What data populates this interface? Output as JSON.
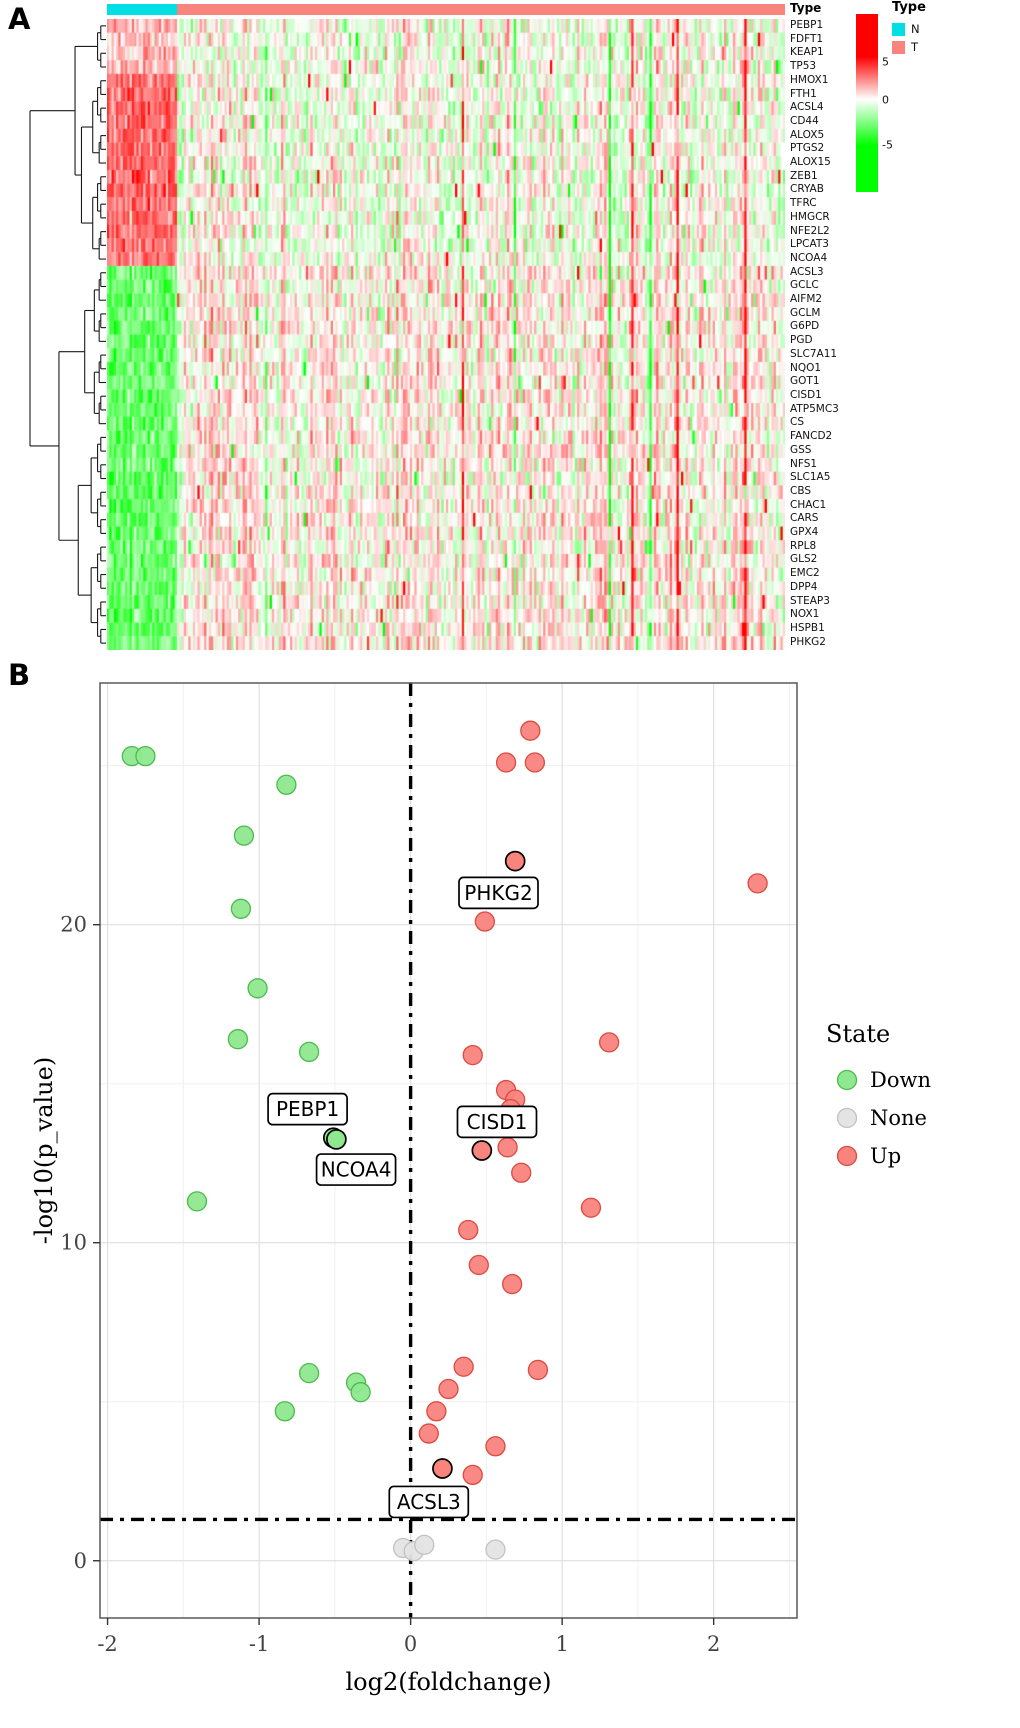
{
  "panels": {
    "a_label": "A",
    "b_label": "B"
  },
  "chart_data": [
    {
      "type": "heatmap",
      "rows": [
        "PEBP1",
        "FDFT1",
        "KEAP1",
        "TP53",
        "HMOX1",
        "FTH1",
        "ACSL4",
        "CD44",
        "ALOX5",
        "PTGS2",
        "ALOX15",
        "ZEB1",
        "CRYAB",
        "TFRC",
        "HMGCR",
        "NFE2L2",
        "LPCAT3",
        "NCOA4",
        "ACSL3",
        "GCLC",
        "AIFM2",
        "GCLM",
        "G6PD",
        "PGD",
        "SLC7A11",
        "NQO1",
        "GOT1",
        "CISD1",
        "ATP5MC3",
        "CS",
        "FANCD2",
        "GSS",
        "NFS1",
        "SLC1A5",
        "CBS",
        "CHAC1",
        "CARS",
        "GPX4",
        "RPL8",
        "GLS2",
        "EMC2",
        "DPP4",
        "STEAP3",
        "NOX1",
        "HSPB1",
        "PHKG2"
      ],
      "annotation_title": "Type",
      "annotation_groups": [
        {
          "label": "N",
          "color": "#00E0E4",
          "fraction": 0.103
        },
        {
          "label": "T",
          "color": "#F9837D",
          "fraction": 0.897
        }
      ],
      "legend_title": "Type",
      "colorbar_ticks": [
        "5",
        "0",
        "-5"
      ],
      "colorbar_colors": {
        "high": "#FF0000",
        "mid": "#FFFFFF",
        "low": "#00FF00"
      },
      "value_range": [
        -10,
        10
      ],
      "n_columns": 300,
      "legend_position": "right"
    },
    {
      "type": "scatter",
      "subtype": "volcano",
      "xlabel": "log2(foldchange)",
      "ylabel": "-log10(p_value)",
      "x_ticks": [
        -2,
        -1,
        0,
        1,
        2
      ],
      "y_ticks": [
        0,
        10,
        20
      ],
      "x_minor_ticks": [
        -1.5,
        -0.5,
        0.5,
        1.5,
        2.5
      ],
      "y_minor_ticks": [
        5,
        15,
        25
      ],
      "xlim": [
        -2.05,
        2.55
      ],
      "ylim": [
        -1.8,
        27.6
      ],
      "vline_x": 0,
      "hline_y": 1.3,
      "grid": true,
      "legend_title": "State",
      "legend_position": "right",
      "series": [
        {
          "name": "Down",
          "color": "#8FE88F",
          "stroke": "#4CBB4C",
          "points": [
            [
              -1.84,
              25.3
            ],
            [
              -1.75,
              25.3
            ],
            [
              -0.82,
              24.4
            ],
            [
              -1.1,
              22.8
            ],
            [
              -1.12,
              20.5
            ],
            [
              -1.01,
              18.0
            ],
            [
              -1.14,
              16.4
            ],
            [
              -0.67,
              16.0
            ],
            [
              -1.41,
              11.3
            ],
            [
              -0.67,
              5.9
            ],
            [
              -0.36,
              5.6
            ],
            [
              -0.33,
              5.3
            ],
            [
              -0.83,
              4.7
            ]
          ]
        },
        {
          "name": "None",
          "color": "#E4E4E4",
          "stroke": "#C2C2C2",
          "points": [
            [
              -0.05,
              0.4
            ],
            [
              0.02,
              0.3
            ],
            [
              0.09,
              0.5
            ],
            [
              0.56,
              0.35
            ]
          ]
        },
        {
          "name": "Up",
          "color": "#F9837D",
          "stroke": "#DC4A40",
          "points": [
            [
              0.79,
              26.1
            ],
            [
              0.63,
              25.1
            ],
            [
              0.82,
              25.1
            ],
            [
              2.29,
              21.3
            ],
            [
              0.49,
              20.1
            ],
            [
              1.31,
              16.3
            ],
            [
              0.41,
              15.9
            ],
            [
              0.63,
              14.8
            ],
            [
              0.69,
              14.5
            ],
            [
              0.66,
              14.2
            ],
            [
              0.64,
              13.0
            ],
            [
              0.73,
              12.2
            ],
            [
              1.19,
              11.1
            ],
            [
              0.38,
              10.4
            ],
            [
              0.45,
              9.3
            ],
            [
              0.67,
              8.7
            ],
            [
              0.35,
              6.1
            ],
            [
              0.84,
              6.0
            ],
            [
              0.25,
              5.4
            ],
            [
              0.17,
              4.7
            ],
            [
              0.12,
              4.0
            ],
            [
              0.56,
              3.6
            ],
            [
              0.41,
              2.7
            ]
          ]
        }
      ],
      "labeled_points": [
        {
          "gene": "PHKG2",
          "x": 0.69,
          "y": 22.0,
          "state": "Up",
          "label_x": 0.58,
          "label_y": 21.0
        },
        {
          "gene": "PEBP1",
          "x": -0.51,
          "y": 13.3,
          "state": "Down",
          "label_x": -0.68,
          "label_y": 14.2
        },
        {
          "gene": "NCOA4",
          "x": -0.49,
          "y": 13.25,
          "state": "Down",
          "label_x": -0.36,
          "label_y": 12.3
        },
        {
          "gene": "CISD1",
          "x": 0.47,
          "y": 12.9,
          "state": "Up",
          "label_x": 0.57,
          "label_y": 13.8
        },
        {
          "gene": "ACSL3",
          "x": 0.21,
          "y": 2.9,
          "state": "Up",
          "label_x": 0.12,
          "label_y": 1.85
        }
      ]
    }
  ]
}
